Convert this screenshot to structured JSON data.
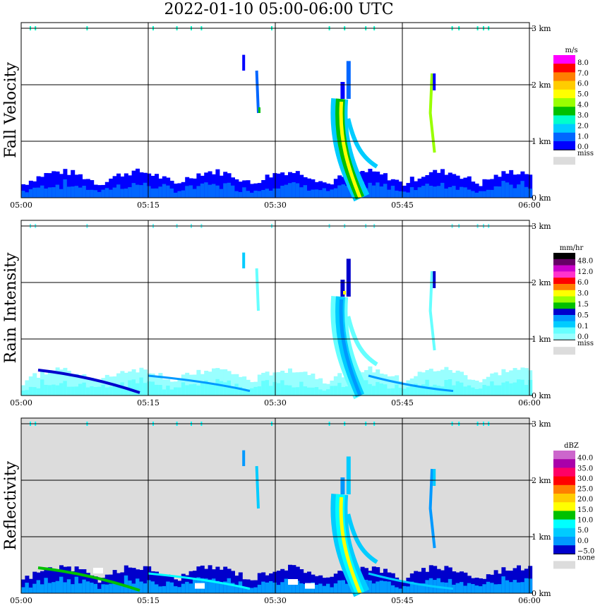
{
  "title": "2022-01-10   05:00-06:00 UTC",
  "colors": {
    "grid": "#000000",
    "missing": "#dcdcdc",
    "white": "#ffffff"
  },
  "chart_data": [
    {
      "type": "heatmap",
      "id": "fall-velocity",
      "ylabel": "Fall Velocity",
      "xlabel": "",
      "x_ticks": [
        "05:00",
        "05:15",
        "05:30",
        "05:45",
        "06:00"
      ],
      "y_ticks": [
        "0 km",
        "1 km",
        "2 km",
        "3 km"
      ],
      "ylim": [
        0,
        3
      ],
      "legend": {
        "unit": "m/s",
        "labels": [
          "8.0",
          "7.0",
          "6.0",
          "5.0",
          "4.0",
          "3.0",
          "2.0",
          "1.0",
          "0.0"
        ],
        "colors": [
          "#ff00ff",
          "#ff0000",
          "#ff7f00",
          "#ffcc00",
          "#ffff00",
          "#99ff00",
          "#00c000",
          "#00ffcc",
          "#00ccff",
          "#0066ff",
          "#0000ff"
        ],
        "missing_label": "miss"
      },
      "background": "#ffffff",
      "features": [
        {
          "name": "ground-layer",
          "x_start_min": 0,
          "x_end_min": 60,
          "top_km": 0.45,
          "value": "0.0-1.0 m/s"
        },
        {
          "name": "fall-streak-main",
          "x_start_min": 37,
          "x_end_min": 41,
          "top_km": 2.4,
          "value": "1.0-5.0 m/s"
        },
        {
          "name": "streak-05-27",
          "x_start_min": 26,
          "x_end_min": 28,
          "top_km": 2.5,
          "value": "1.0-3.0 m/s"
        },
        {
          "name": "streak-05-49",
          "x_start_min": 48,
          "x_end_min": 49.5,
          "top_km": 2.2,
          "value": "2.0-6.0 m/s"
        }
      ]
    },
    {
      "type": "heatmap",
      "id": "rain-intensity",
      "ylabel": "Rain Intensity",
      "xlabel": "",
      "x_ticks": [
        "05:00",
        "05:15",
        "05:30",
        "05:45",
        "06:00"
      ],
      "y_ticks": [
        "0 km",
        "1 km",
        "2 km",
        "3 km"
      ],
      "ylim": [
        0,
        3
      ],
      "legend": {
        "unit": "mm/hr",
        "labels": [
          "48.0",
          "12.0",
          "6.0",
          "3.0",
          "1.5",
          "0.5",
          "0.1",
          "0.0"
        ],
        "colors": [
          "#000000",
          "#660066",
          "#cc00cc",
          "#ff33cc",
          "#ff0000",
          "#ff7f00",
          "#ffff00",
          "#99ff00",
          "#00c000",
          "#0000cc",
          "#0099ff",
          "#00ccff",
          "#66ffff",
          "#99ffff"
        ],
        "missing_label": "miss"
      },
      "background": "#ffffff",
      "features": [
        {
          "name": "ground-layer",
          "x_start_min": 0,
          "x_end_min": 60,
          "top_km": 0.6,
          "value": "0.1-0.5 mm/hr"
        },
        {
          "name": "fall-streak-main",
          "x_start_min": 37,
          "x_end_min": 41,
          "top_km": 2.4,
          "value": "0.1-3.0 mm/hr"
        },
        {
          "name": "streak-05-27",
          "x_start_min": 26,
          "x_end_min": 28,
          "top_km": 2.5,
          "value": "0.1 mm/hr"
        },
        {
          "name": "streak-05-49",
          "x_start_min": 48,
          "x_end_min": 49.5,
          "top_km": 2.2,
          "value": "0.1-0.5 mm/hr"
        }
      ]
    },
    {
      "type": "heatmap",
      "id": "reflectivity",
      "ylabel": "Reflectivity",
      "xlabel": "",
      "x_ticks": [
        "05:00",
        "05:15",
        "05:30",
        "05:45",
        "06:00"
      ],
      "y_ticks": [
        "0 km",
        "1 km",
        "2 km",
        "3 km"
      ],
      "ylim": [
        0,
        3
      ],
      "legend": {
        "unit": "dBZ",
        "labels": [
          "40.0",
          "35.0",
          "30.0",
          "25.0",
          "20.0",
          "15.0",
          "10.0",
          "5.0",
          "0.0",
          "−5.0"
        ],
        "colors": [
          "#cc66cc",
          "#aa00aa",
          "#ff0066",
          "#ff0000",
          "#ff7f00",
          "#ffcc00",
          "#ffff00",
          "#00c000",
          "#00ffff",
          "#00ccff",
          "#0099ff",
          "#0000cc"
        ],
        "missing_label": "none"
      },
      "background": "#dcdcdc",
      "features": [
        {
          "name": "ground-layer",
          "x_start_min": 0,
          "x_end_min": 60,
          "top_km": 0.6,
          "value": "-5.0-15.0 dBZ"
        },
        {
          "name": "fall-streak-main",
          "x_start_min": 37,
          "x_end_min": 41,
          "top_km": 2.4,
          "value": "0.0-20.0 dBZ"
        },
        {
          "name": "streak-05-27",
          "x_start_min": 26,
          "x_end_min": 28,
          "top_km": 2.5,
          "value": "0.0-5.0 dBZ"
        },
        {
          "name": "streak-05-49",
          "x_start_min": 48,
          "x_end_min": 49.5,
          "top_km": 2.2,
          "value": "-5.0-5.0 dBZ"
        }
      ]
    }
  ]
}
